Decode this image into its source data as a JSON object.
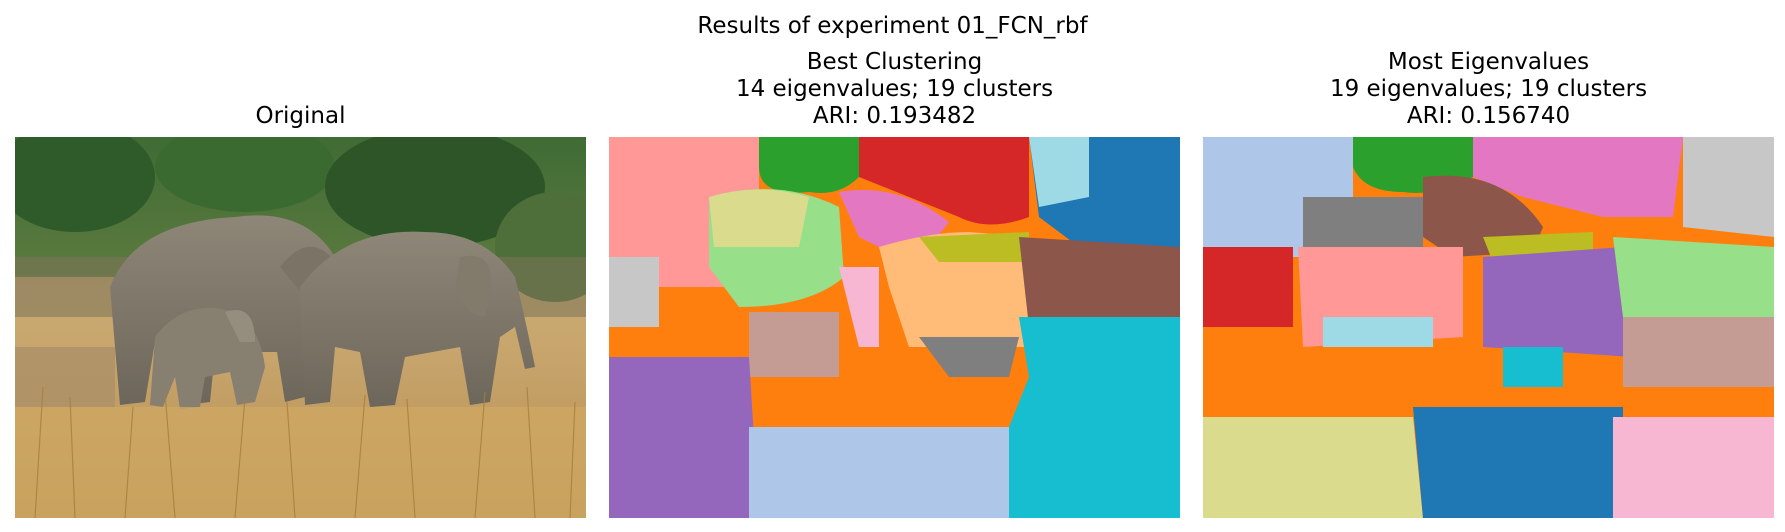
{
  "figure": {
    "title": "Results of experiment 01_FCN_rbf"
  },
  "panels": [
    {
      "id": "original",
      "title_lines": [
        "Original"
      ],
      "content": "photo"
    },
    {
      "id": "best",
      "title_lines": [
        "Best Clustering",
        "14 eigenvalues; 19 clusters",
        "ARI: 0.193482"
      ],
      "content": "segmentation"
    },
    {
      "id": "most",
      "title_lines": [
        "Most Eigenvalues",
        "19 eigenvalues; 19 clusters",
        "ARI: 0.156740"
      ],
      "content": "segmentation"
    }
  ],
  "colors": {
    "blue": "#1f77b4",
    "light_blue": "#aec7e8",
    "orange": "#ff7f0e",
    "light_orange": "#ffbb78",
    "green": "#2ca02c",
    "light_green": "#98df8a",
    "red": "#d62728",
    "pink": "#ff9896",
    "purple": "#9467bd",
    "lavender": "#c5b0d5",
    "brown": "#8c564b",
    "tan": "#c49c94",
    "magenta": "#e377c2",
    "light_magenta": "#f7b6d2",
    "gray": "#7f7f7f",
    "light_gray": "#c7c7c7",
    "olive": "#bcbd22",
    "khaki": "#dbdb8d",
    "cyan": "#17becf",
    "light_cyan": "#9edae5"
  }
}
